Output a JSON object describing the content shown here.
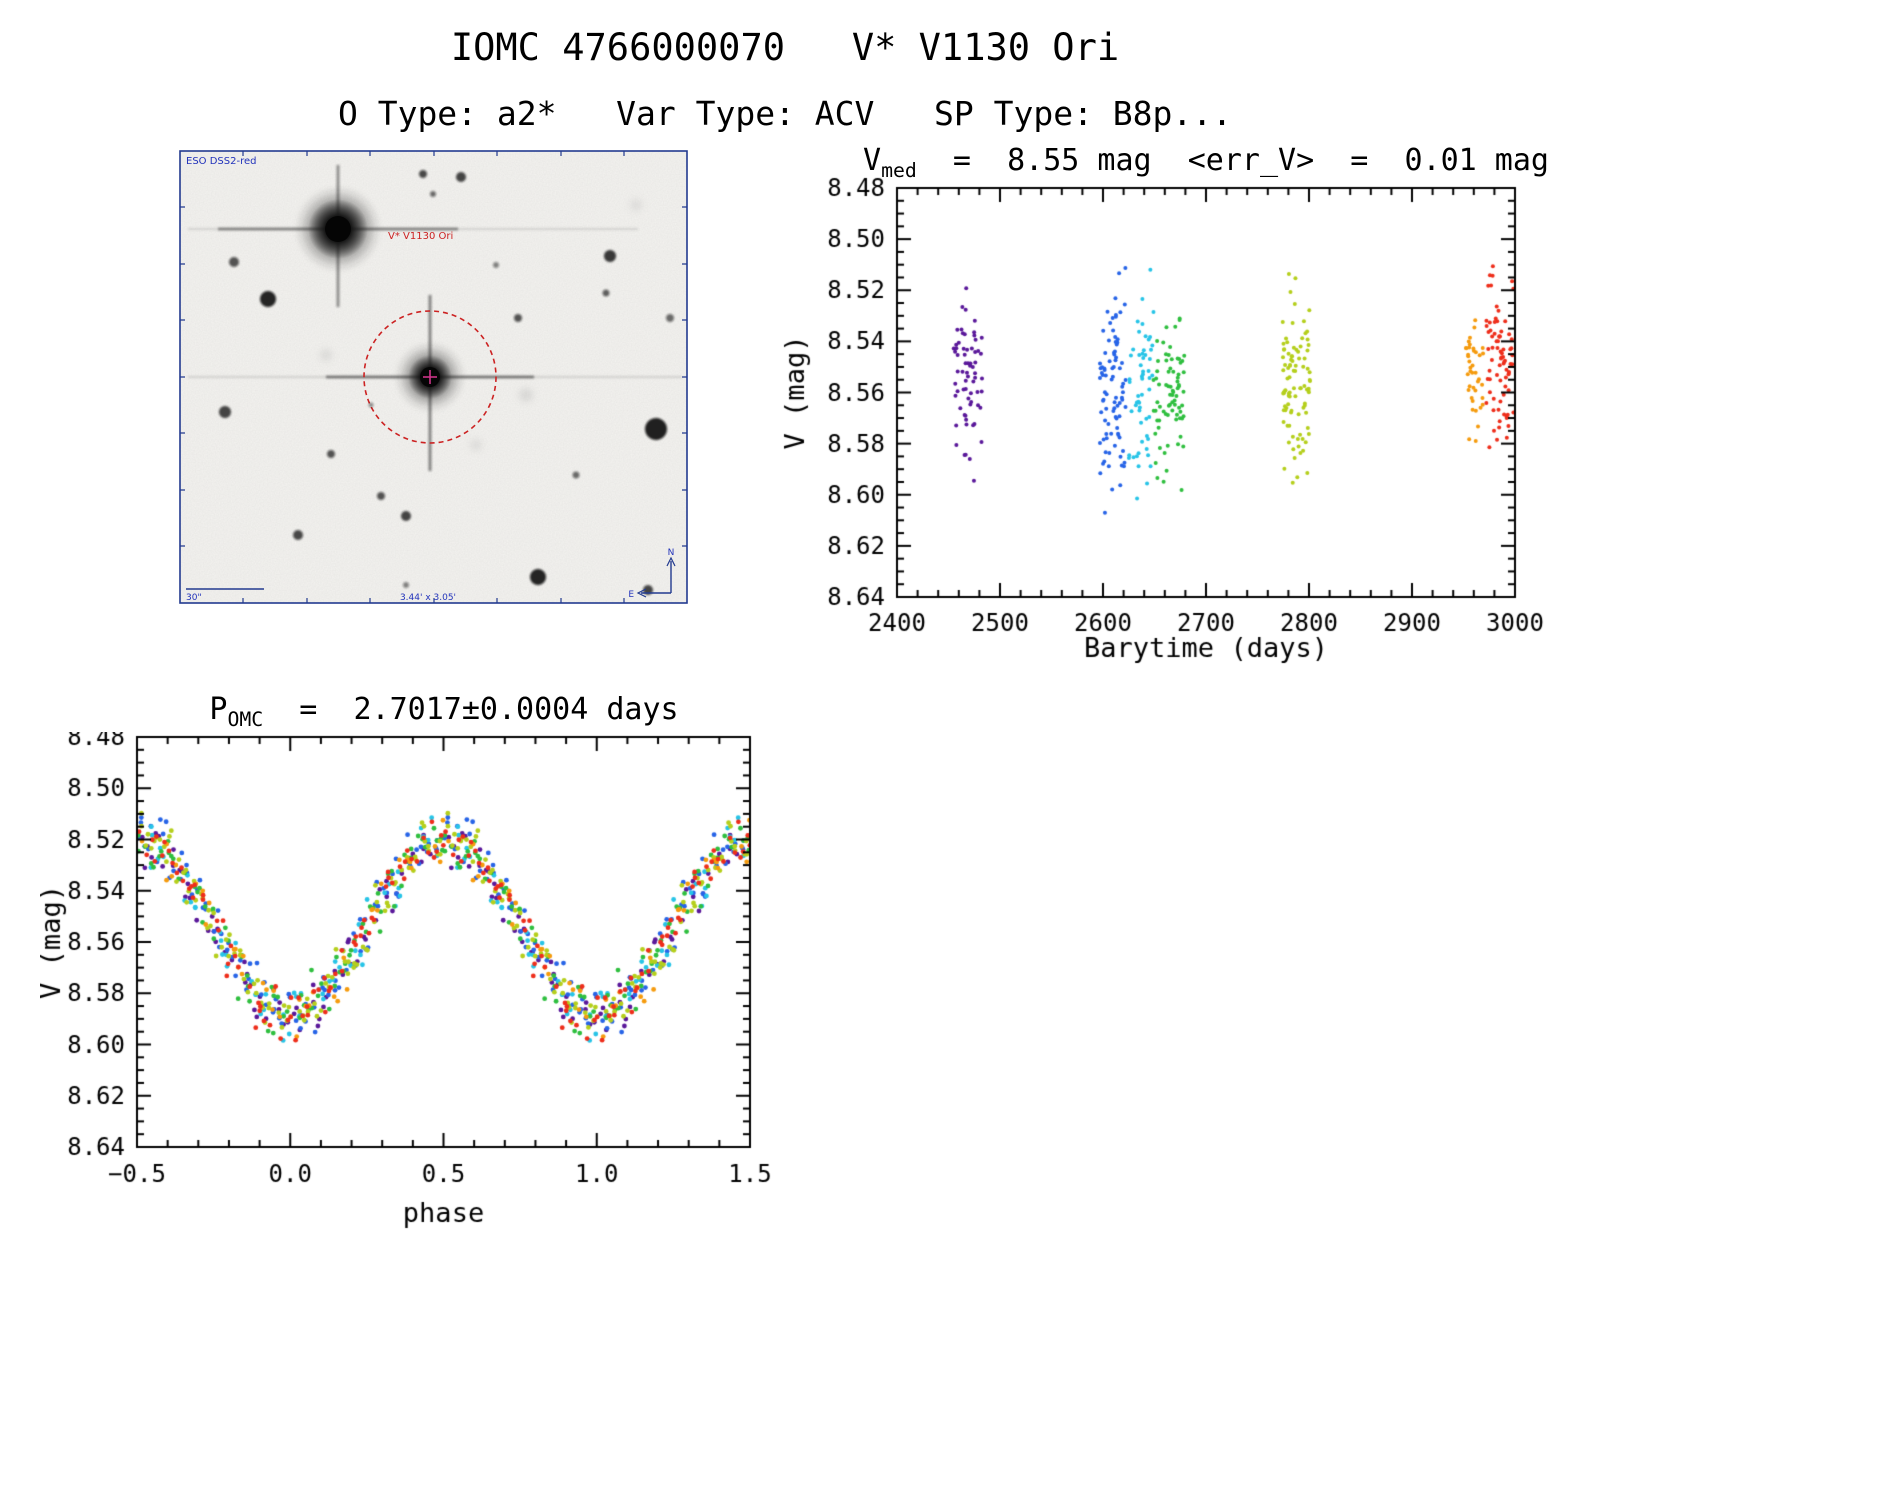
{
  "header": {
    "title": "IOMC 4766000070   V* V1130 Ori",
    "subtitle": "O Type: a2*   Var Type: ACV   SP Type: B8p..."
  },
  "sky_image": {
    "survey_label": "ESO DSS2-red",
    "target_label": "V* V1130 Ori",
    "scale_bar_label": "30\"",
    "fov_label": "3.44' x 3.05'",
    "compass_north_label": "N",
    "compass_east_label": "E",
    "annotation_color": "#2233bb",
    "target_marker_color": "#cc2222"
  },
  "chart_data": [
    {
      "type": "scatter",
      "id": "lightcurve-vs-barytime",
      "title": "V_med = 8.55 mag <err_V> = 0.01 mag",
      "title_parts": {
        "sym": "V",
        "sub": "med",
        "rest": "  =  8.55 mag  <err_V>  =  0.01 mag"
      },
      "v_med_mag": 8.55,
      "err_v_mag": 0.01,
      "xlabel": "Barytime (days)",
      "ylabel": "V (mag)",
      "xlim": [
        2400,
        3000
      ],
      "ylim": [
        8.64,
        8.48
      ],
      "y_axis_inverted": true,
      "xticks": [
        2400,
        2500,
        2600,
        2700,
        2800,
        2900,
        3000
      ],
      "x_minor_step": 20,
      "yticks": [
        8.48,
        8.5,
        8.52,
        8.54,
        8.56,
        8.58,
        8.6,
        8.62,
        8.64
      ],
      "y_minor_step": 0.005,
      "grid": false,
      "legend": false,
      "epoch_clusters": [
        {
          "name": "epoch-1",
          "color": "#5a189a",
          "t_range": [
            2455,
            2483
          ],
          "mag_center": 8.555,
          "mag_half_range": 0.048,
          "n_points": 68,
          "seed": 11
        },
        {
          "name": "epoch-2",
          "color": "#2764e7",
          "t_range": [
            2597,
            2622
          ],
          "mag_center": 8.563,
          "mag_half_range": 0.06,
          "n_points": 88,
          "seed": 22
        },
        {
          "name": "epoch-3",
          "color": "#27c4e7",
          "t_range": [
            2624,
            2649
          ],
          "mag_center": 8.558,
          "mag_half_range": 0.051,
          "n_points": 56,
          "seed": 33
        },
        {
          "name": "epoch-4",
          "color": "#2fbf3f",
          "t_range": [
            2648,
            2679
          ],
          "mag_center": 8.563,
          "mag_half_range": 0.053,
          "n_points": 76,
          "seed": 44
        },
        {
          "name": "epoch-5",
          "color": "#b5cf1c",
          "t_range": [
            2774,
            2801
          ],
          "mag_center": 8.558,
          "mag_half_range": 0.05,
          "n_points": 96,
          "seed": 55
        },
        {
          "name": "epoch-6",
          "color": "#f59b0e",
          "t_range": [
            2952,
            2969
          ],
          "mag_center": 8.556,
          "mag_half_range": 0.03,
          "n_points": 40,
          "seed": 66
        },
        {
          "name": "epoch-7",
          "color": "#ee2e1b",
          "t_range": [
            2972,
            2999
          ],
          "mag_center": 8.549,
          "mag_half_range": 0.049,
          "n_points": 78,
          "seed": 77
        }
      ]
    },
    {
      "type": "scatter",
      "id": "lightcurve-phase-folded",
      "title": "P_OMC = 2.7017±0.0004 days",
      "title_parts": {
        "sym": "P",
        "sub": "OMC",
        "rest": "  =  2.7017±0.0004 days"
      },
      "period_days": 2.7017,
      "period_err_days": 0.0004,
      "xlabel": "phase",
      "ylabel": "V (mag)",
      "xlim": [
        -0.5,
        1.5
      ],
      "ylim": [
        8.64,
        8.48
      ],
      "y_axis_inverted": true,
      "xticks": [
        -0.5,
        0.0,
        0.5,
        1.0,
        1.5
      ],
      "x_minor_step": 0.1,
      "yticks": [
        8.48,
        8.5,
        8.52,
        8.54,
        8.56,
        8.58,
        8.6,
        8.62,
        8.64
      ],
      "y_minor_step": 0.005,
      "grid": false,
      "legend": false,
      "fold_model": {
        "mean_mag": 8.554,
        "amplitude_mag": 0.034,
        "faint_minimum_phase": 0.0,
        "bright_maximum_phase": 0.5,
        "scatter_mag": 0.016
      },
      "phase_columns": {
        "step": 0.1123,
        "jitter": 0.012
      }
    }
  ]
}
